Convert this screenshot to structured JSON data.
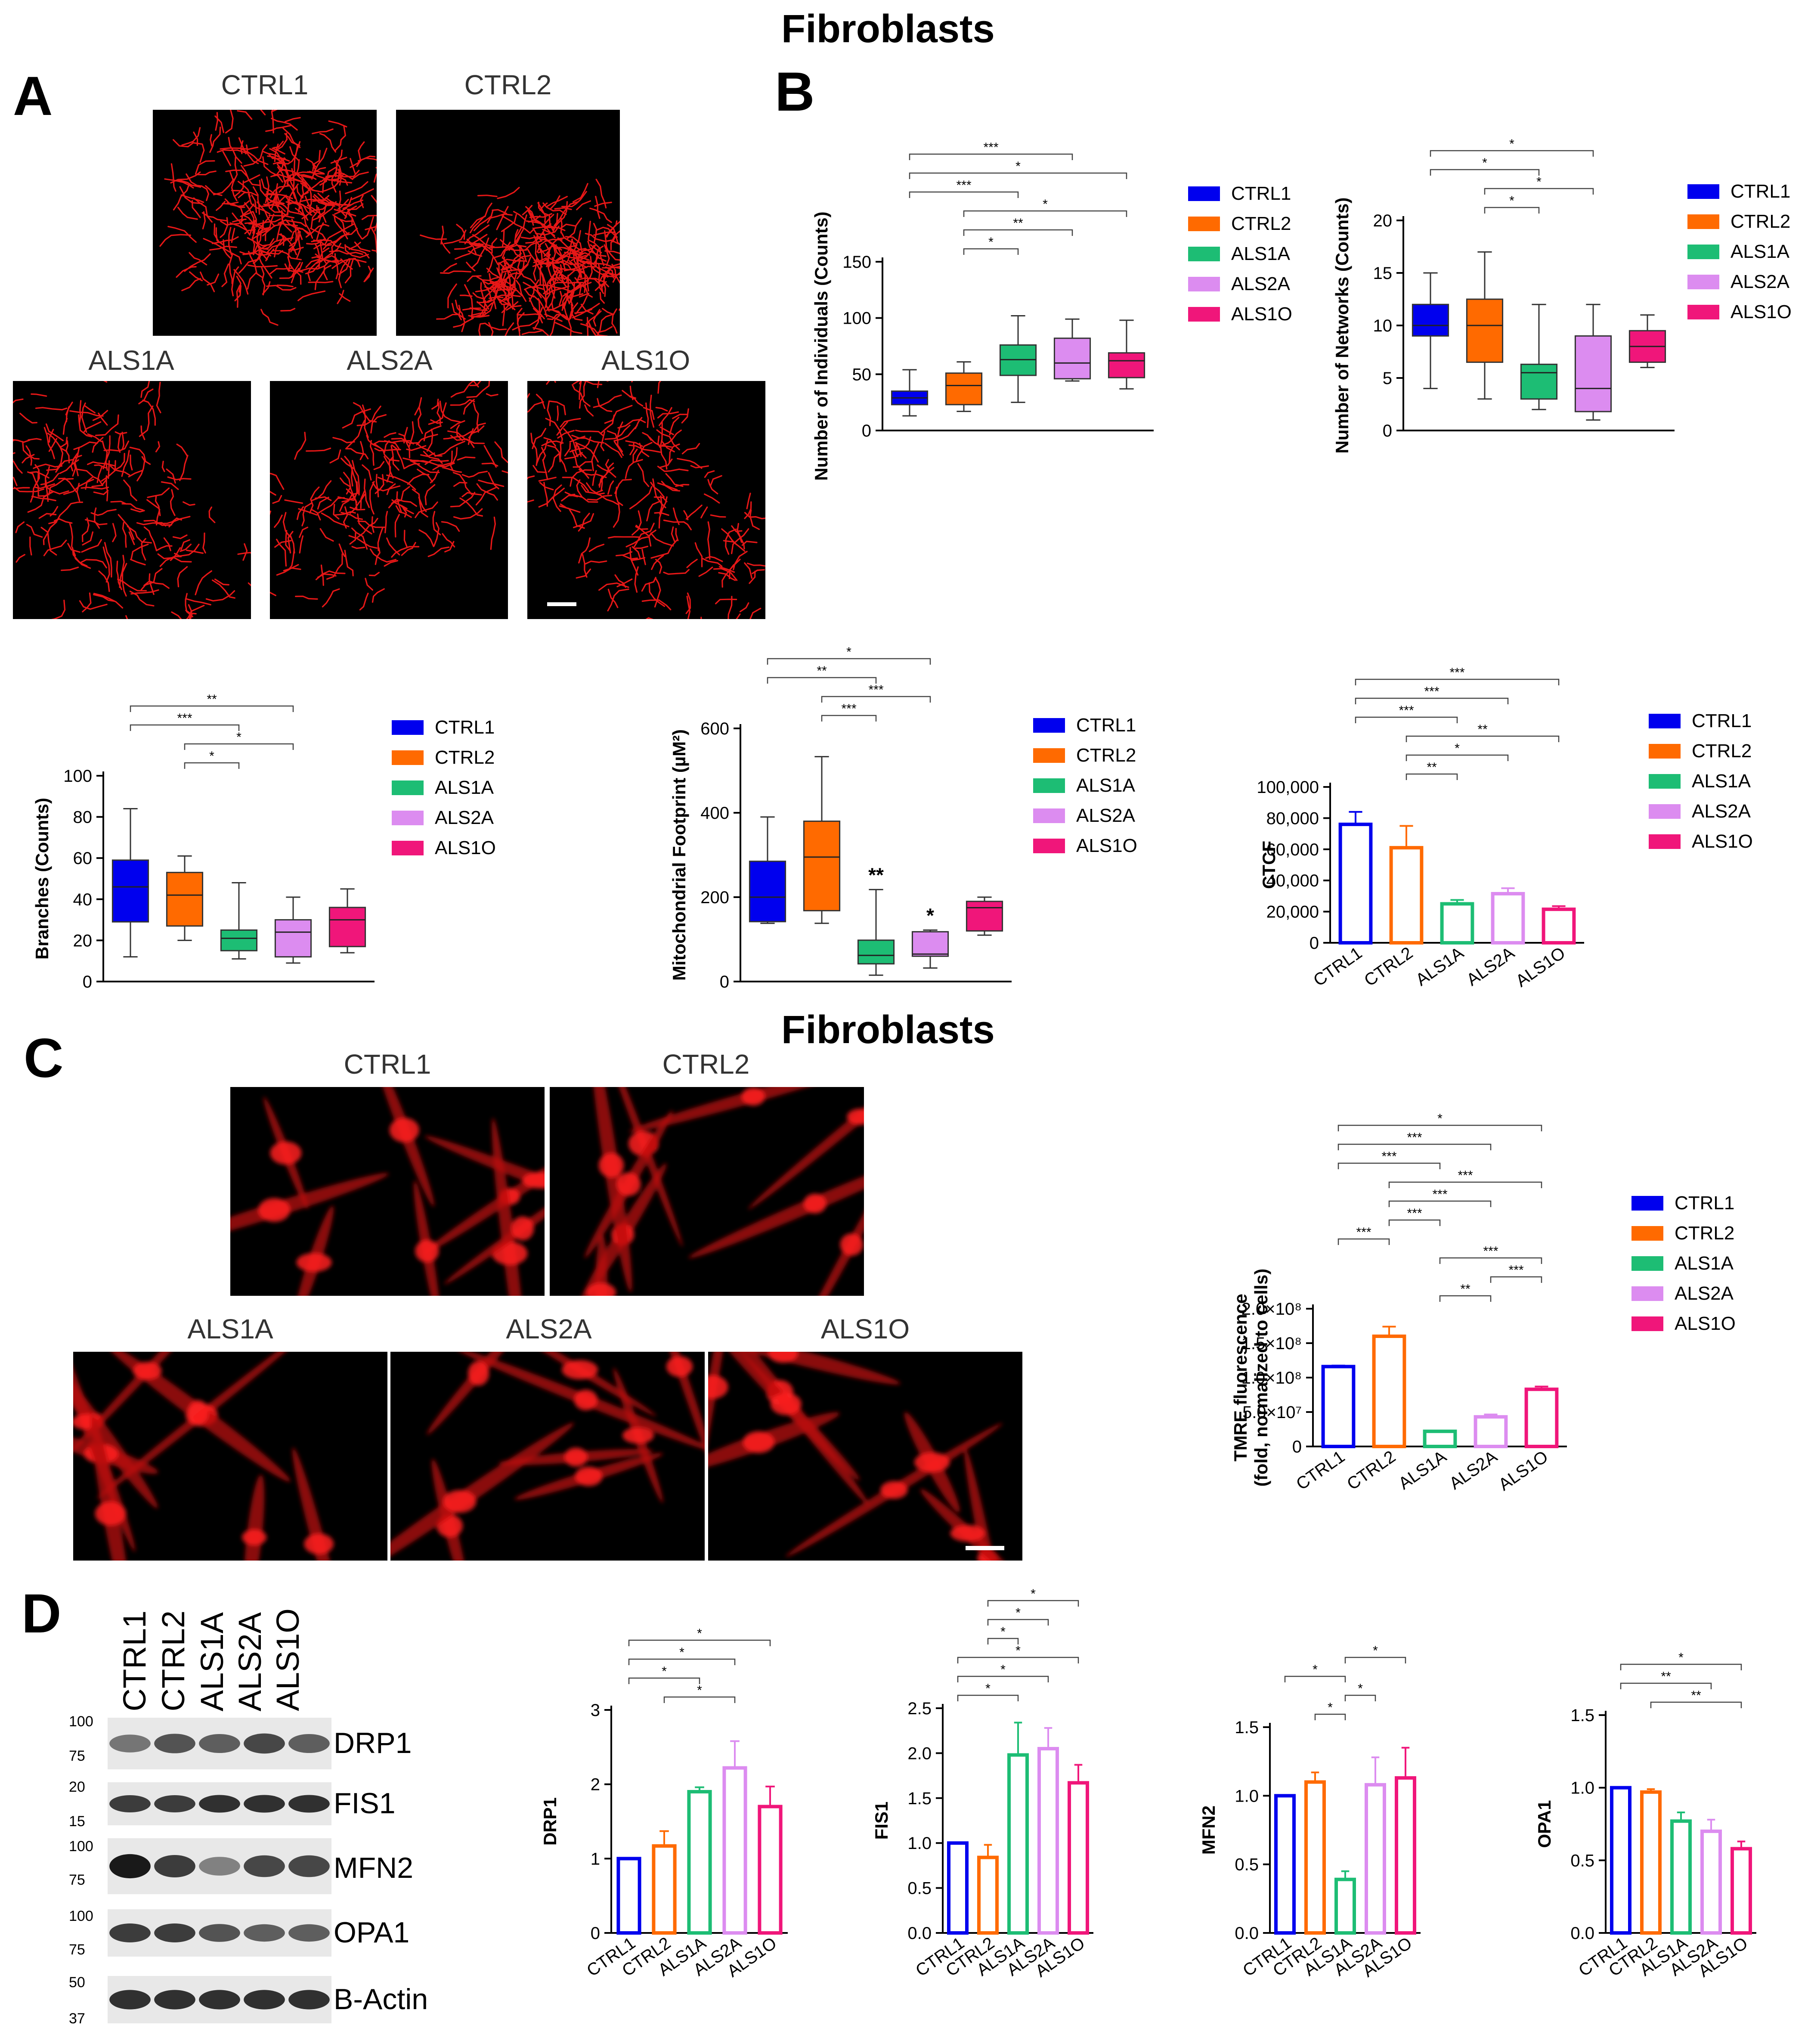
{
  "headings": {
    "top": "Fibroblasts",
    "middle": "Fibroblasts"
  },
  "panel_letters": {
    "a": "A",
    "b": "B",
    "c": "C",
    "d": "D"
  },
  "groups": [
    "CTRL1",
    "CTRL2",
    "ALS1A",
    "ALS2A",
    "ALS1O"
  ],
  "colors": {
    "CTRL1": "#0000ee",
    "CTRL2": "#ff6a00",
    "ALS1A": "#1dbd74",
    "ALS2A": "#dc8cf0",
    "ALS1O": "#f0167a"
  },
  "blot": {
    "lanes": [
      "CTRL1",
      "CTRL2",
      "ALS1A",
      "ALS2A",
      "ALS1O"
    ],
    "proteins": [
      "DRP1",
      "FIS1",
      "MFN2",
      "OPA1",
      "B-Actin"
    ],
    "markers": {
      "drp1": [
        "100",
        "75"
      ],
      "fis1": [
        "20",
        "15"
      ],
      "mfn2": [
        "100",
        "75"
      ],
      "opa1": [
        "100",
        "75"
      ],
      "actin": [
        "50",
        "37"
      ]
    }
  },
  "chart_data": [
    {
      "id": "individuals",
      "type": "box",
      "ylabel": "Number of Individuals (Counts)",
      "ylim": [
        0,
        150
      ],
      "yticks": [
        0,
        50,
        100,
        150
      ],
      "categories": [
        "CTRL1",
        "CTRL2",
        "ALS1A",
        "ALS2A",
        "ALS1O"
      ],
      "boxes": [
        {
          "min": 13,
          "q1": 23,
          "median": 29,
          "q3": 35,
          "max": 54
        },
        {
          "min": 17,
          "q1": 23,
          "median": 40,
          "q3": 51,
          "max": 61
        },
        {
          "min": 25,
          "q1": 49,
          "median": 63,
          "q3": 76,
          "max": 102
        },
        {
          "min": 44,
          "q1": 46,
          "median": 60,
          "q3": 82,
          "max": 99
        },
        {
          "min": 37,
          "q1": 47,
          "median": 62,
          "q3": 69,
          "max": 98
        }
      ],
      "significance": [
        {
          "from": 0,
          "to": 3,
          "label": "***"
        },
        {
          "from": 0,
          "to": 4,
          "label": "*"
        },
        {
          "from": 0,
          "to": 2,
          "label": "***"
        },
        {
          "from": 1,
          "to": 4,
          "label": "*"
        },
        {
          "from": 1,
          "to": 3,
          "label": "**"
        },
        {
          "from": 1,
          "to": 2,
          "label": "*"
        }
      ]
    },
    {
      "id": "networks",
      "type": "box",
      "ylabel": "Number of Networks (Counts)",
      "ylim": [
        0,
        20
      ],
      "yticks": [
        0,
        5,
        10,
        15,
        20
      ],
      "categories": [
        "CTRL1",
        "CTRL2",
        "ALS1A",
        "ALS2A",
        "ALS1O"
      ],
      "boxes": [
        {
          "min": 4,
          "q1": 9,
          "median": 10,
          "q3": 12,
          "max": 15
        },
        {
          "min": 3,
          "q1": 6.5,
          "median": 10,
          "q3": 12.5,
          "max": 17
        },
        {
          "min": 2,
          "q1": 3,
          "median": 5.5,
          "q3": 6.3,
          "max": 12
        },
        {
          "min": 1,
          "q1": 1.8,
          "median": 4,
          "q3": 9,
          "max": 12
        },
        {
          "min": 6,
          "q1": 6.5,
          "median": 8,
          "q3": 9.5,
          "max": 11
        }
      ],
      "significance": [
        {
          "from": 0,
          "to": 3,
          "label": "*"
        },
        {
          "from": 0,
          "to": 2,
          "label": "*"
        },
        {
          "from": 1,
          "to": 3,
          "label": "*"
        },
        {
          "from": 1,
          "to": 2,
          "label": "*"
        }
      ]
    },
    {
      "id": "branches",
      "type": "box",
      "ylabel": "Branches (Counts)",
      "ylim": [
        0,
        100
      ],
      "yticks": [
        0,
        20,
        40,
        60,
        80,
        100
      ],
      "categories": [
        "CTRL1",
        "CTRL2",
        "ALS1A",
        "ALS2A",
        "ALS1O"
      ],
      "boxes": [
        {
          "min": 12,
          "q1": 29,
          "median": 46,
          "q3": 59,
          "max": 84
        },
        {
          "min": 20,
          "q1": 27,
          "median": 42,
          "q3": 53,
          "max": 61
        },
        {
          "min": 11,
          "q1": 15,
          "median": 21,
          "q3": 25,
          "max": 48
        },
        {
          "min": 9,
          "q1": 12,
          "median": 24,
          "q3": 30,
          "max": 41
        },
        {
          "min": 14,
          "q1": 17,
          "median": 30,
          "q3": 36,
          "max": 45
        }
      ],
      "significance": [
        {
          "from": 0,
          "to": 3,
          "label": "**"
        },
        {
          "from": 0,
          "to": 2,
          "label": "***"
        },
        {
          "from": 1,
          "to": 3,
          "label": "*"
        },
        {
          "from": 1,
          "to": 2,
          "label": "*"
        }
      ]
    },
    {
      "id": "footprint",
      "type": "box",
      "ylabel": "Mitochondrial Footprint (µM²)",
      "ylim": [
        0,
        600
      ],
      "yticks": [
        0,
        200,
        400,
        600
      ],
      "categories": [
        "CTRL1",
        "CTRL2",
        "ALS1A",
        "ALS2A",
        "ALS1O"
      ],
      "boxes": [
        {
          "min": 138,
          "q1": 142,
          "median": 200,
          "q3": 285,
          "max": 390
        },
        {
          "min": 138,
          "q1": 168,
          "median": 295,
          "q3": 380,
          "max": 533
        },
        {
          "min": 15,
          "q1": 42,
          "median": 62,
          "q3": 98,
          "max": 218
        },
        {
          "min": 32,
          "q1": 60,
          "median": 65,
          "q3": 118,
          "max": 122
        },
        {
          "min": 110,
          "q1": 120,
          "median": 175,
          "q3": 190,
          "max": 200
        }
      ],
      "point_labels": [
        {
          "index": 2,
          "label": "**"
        },
        {
          "index": 3,
          "label": "*"
        }
      ],
      "significance": [
        {
          "from": 0,
          "to": 3,
          "label": "*"
        },
        {
          "from": 0,
          "to": 2,
          "label": "**"
        },
        {
          "from": 1,
          "to": 3,
          "label": "***"
        },
        {
          "from": 1,
          "to": 2,
          "label": "***"
        }
      ]
    },
    {
      "id": "ctcf",
      "type": "bar",
      "ylabel": "CTCF",
      "ylim": [
        0,
        100000
      ],
      "yticks": [
        0,
        20000,
        40000,
        60000,
        80000,
        100000
      ],
      "ytick_labels": [
        "0",
        "20,000",
        "40,000",
        "60,000",
        "80,000",
        "100,000"
      ],
      "categories": [
        "CTRL1",
        "CTRL2",
        "ALS1A",
        "ALS2A",
        "ALS1O"
      ],
      "values": [
        76000,
        61000,
        25000,
        31500,
        21500
      ],
      "errors": [
        8000,
        14000,
        2500,
        3500,
        2000
      ],
      "significance": [
        {
          "from": 0,
          "to": 4,
          "label": "***"
        },
        {
          "from": 0,
          "to": 3,
          "label": "***"
        },
        {
          "from": 0,
          "to": 2,
          "label": "***"
        },
        {
          "from": 1,
          "to": 4,
          "label": "**"
        },
        {
          "from": 1,
          "to": 3,
          "label": "*"
        },
        {
          "from": 1,
          "to": 2,
          "label": "**"
        }
      ]
    },
    {
      "id": "tmre",
      "type": "bar",
      "ylabel": "TMRE fluorescence",
      "ylabel2": "(fold, normalized to cells)",
      "ylim": [
        0,
        200000000
      ],
      "yticks": [
        0,
        50000000,
        100000000,
        150000000,
        200000000
      ],
      "ytick_labels": [
        "0",
        "5.0×10⁷",
        "1.0×10⁸",
        "1.5×10⁸",
        "2.0×10⁸"
      ],
      "categories": [
        "CTRL1",
        "CTRL2",
        "ALS1A",
        "ALS2A",
        "ALS1O"
      ],
      "values": [
        116000000,
        160000000,
        22000000,
        43000000,
        83000000
      ],
      "errors": [
        1500000,
        14000000,
        1000000,
        3500000,
        4000000
      ],
      "significance": [
        {
          "from": 0,
          "to": 4,
          "label": "*"
        },
        {
          "from": 0,
          "to": 3,
          "label": "***"
        },
        {
          "from": 0,
          "to": 2,
          "label": "***"
        },
        {
          "from": 1,
          "to": 4,
          "label": "***"
        },
        {
          "from": 1,
          "to": 3,
          "label": "***"
        },
        {
          "from": 1,
          "to": 2,
          "label": "***"
        },
        {
          "from": 0,
          "to": 1,
          "label": "***"
        },
        {
          "from": 2,
          "to": 4,
          "label": "***"
        },
        {
          "from": 3,
          "to": 4,
          "label": "***"
        },
        {
          "from": 2,
          "to": 3,
          "label": "**"
        }
      ]
    },
    {
      "id": "drp1",
      "type": "bar",
      "ylabel": "DRP1",
      "ylim": [
        0,
        3
      ],
      "yticks": [
        0,
        1,
        2,
        3
      ],
      "ytick_labels": [
        "0",
        "1",
        "2",
        "3"
      ],
      "categories": [
        "CTRL1",
        "CTRL2",
        "ALS1A",
        "ALS2A",
        "ALS1O"
      ],
      "values": [
        1.0,
        1.17,
        1.9,
        2.22,
        1.7
      ],
      "errors": [
        0,
        0.2,
        0.06,
        0.36,
        0.27
      ],
      "significance": [
        {
          "from": 0,
          "to": 4,
          "label": "*"
        },
        {
          "from": 0,
          "to": 3,
          "label": "*"
        },
        {
          "from": 0,
          "to": 2,
          "label": "*"
        },
        {
          "from": 1,
          "to": 3,
          "label": "*"
        }
      ]
    },
    {
      "id": "fis1",
      "type": "bar",
      "ylabel": "FIS1",
      "ylim": [
        0,
        2.5
      ],
      "yticks": [
        0,
        0.5,
        1,
        1.5,
        2,
        2.5
      ],
      "ytick_labels": [
        "0.0",
        "0.5",
        "1.0",
        "1.5",
        "2.0",
        "2.5"
      ],
      "categories": [
        "CTRL1",
        "CTRL2",
        "ALS1A",
        "ALS2A",
        "ALS1O"
      ],
      "values": [
        1.0,
        0.84,
        1.98,
        2.05,
        1.67
      ],
      "errors": [
        0,
        0.14,
        0.36,
        0.23,
        0.2
      ],
      "significance": [
        {
          "from": 1,
          "to": 4,
          "label": "*"
        },
        {
          "from": 1,
          "to": 3,
          "label": "*"
        },
        {
          "from": 1,
          "to": 2,
          "label": "*"
        },
        {
          "from": 0,
          "to": 4,
          "label": "*"
        },
        {
          "from": 0,
          "to": 3,
          "label": "*"
        },
        {
          "from": 0,
          "to": 2,
          "label": "*"
        }
      ]
    },
    {
      "id": "mfn2",
      "type": "bar",
      "ylabel": "MFN2",
      "ylim": [
        0,
        1.5
      ],
      "yticks": [
        0,
        0.5,
        1,
        1.5
      ],
      "ytick_labels": [
        "0.0",
        "0.5",
        "1.0",
        "1.5"
      ],
      "categories": [
        "CTRL1",
        "CTRL2",
        "ALS1A",
        "ALS2A",
        "ALS1O"
      ],
      "values": [
        1.0,
        1.1,
        0.39,
        1.08,
        1.13
      ],
      "errors": [
        0,
        0.07,
        0.06,
        0.2,
        0.22
      ],
      "significance": [
        {
          "from": 2,
          "to": 4,
          "label": "*"
        },
        {
          "from": 0,
          "to": 2,
          "label": "*"
        },
        {
          "from": 2,
          "to": 3,
          "label": "*"
        },
        {
          "from": 1,
          "to": 2,
          "label": "*"
        }
      ]
    },
    {
      "id": "opa1",
      "type": "bar",
      "ylabel": "OPA1",
      "ylim": [
        0,
        1.5
      ],
      "yticks": [
        0,
        0.5,
        1,
        1.5
      ],
      "ytick_labels": [
        "0.0",
        "0.5",
        "1.0",
        "1.5"
      ],
      "categories": [
        "CTRL1",
        "CTRL2",
        "ALS1A",
        "ALS2A",
        "ALS1O"
      ],
      "values": [
        1.0,
        0.97,
        0.77,
        0.7,
        0.58
      ],
      "errors": [
        0,
        0.02,
        0.06,
        0.08,
        0.05
      ],
      "significance": [
        {
          "from": 0,
          "to": 4,
          "label": "*"
        },
        {
          "from": 0,
          "to": 3,
          "label": "**"
        },
        {
          "from": 1,
          "to": 4,
          "label": "**"
        }
      ]
    }
  ]
}
